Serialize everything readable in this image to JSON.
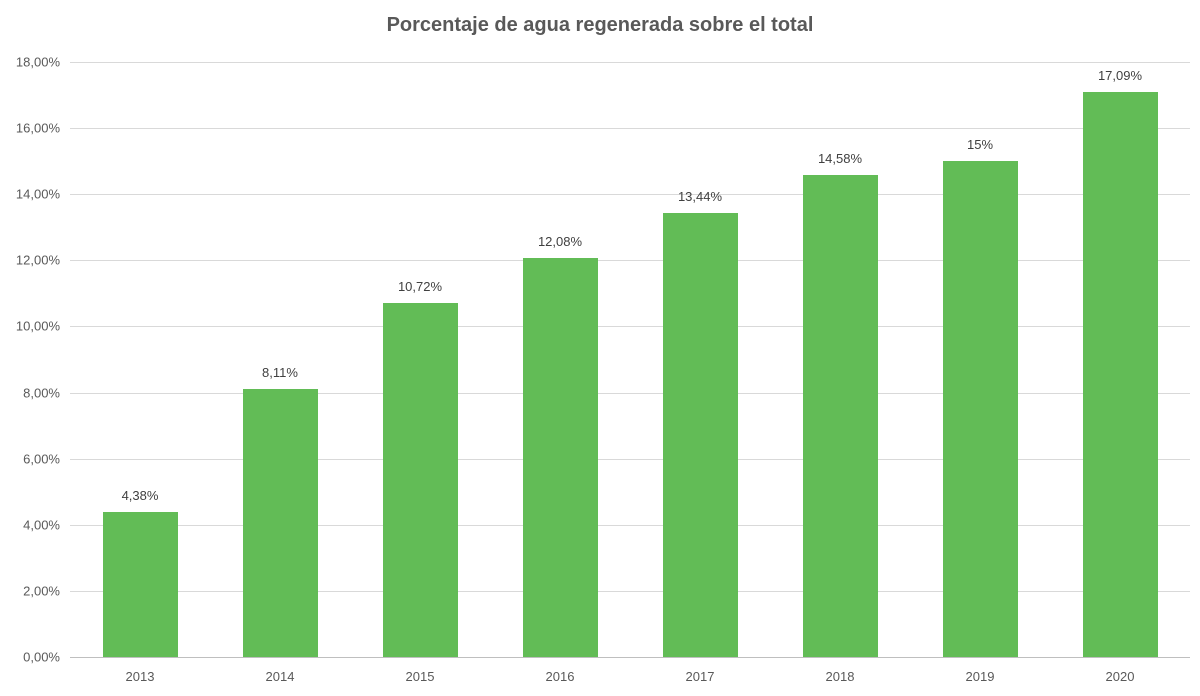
{
  "chart_data": {
    "type": "bar",
    "title": "Porcentaje de agua regenerada sobre el total",
    "categories": [
      "2013",
      "2014",
      "2015",
      "2016",
      "2017",
      "2018",
      "2019",
      "2020"
    ],
    "values": [
      4.38,
      8.11,
      10.72,
      12.08,
      13.44,
      14.58,
      15,
      17.09
    ],
    "data_labels": [
      "4,38%",
      "8,11%",
      "10,72%",
      "12,08%",
      "13,44%",
      "14,58%",
      "15%",
      "17,09%"
    ],
    "xlabel": "",
    "ylabel": "",
    "ylim": [
      0,
      18
    ],
    "y_tick_step": 2,
    "y_tick_labels": [
      "0,00%",
      "2,00%",
      "4,00%",
      "6,00%",
      "8,00%",
      "10,00%",
      "12,00%",
      "14,00%",
      "16,00%",
      "18,00%"
    ],
    "grid": true,
    "legend": false,
    "colors": {
      "bar": "#62BC56",
      "title": "#595959",
      "axis_labels": "#595959",
      "data_labels": "#404040",
      "gridline": "#D9D9D9",
      "axis_line": "#BFBFBF"
    }
  }
}
